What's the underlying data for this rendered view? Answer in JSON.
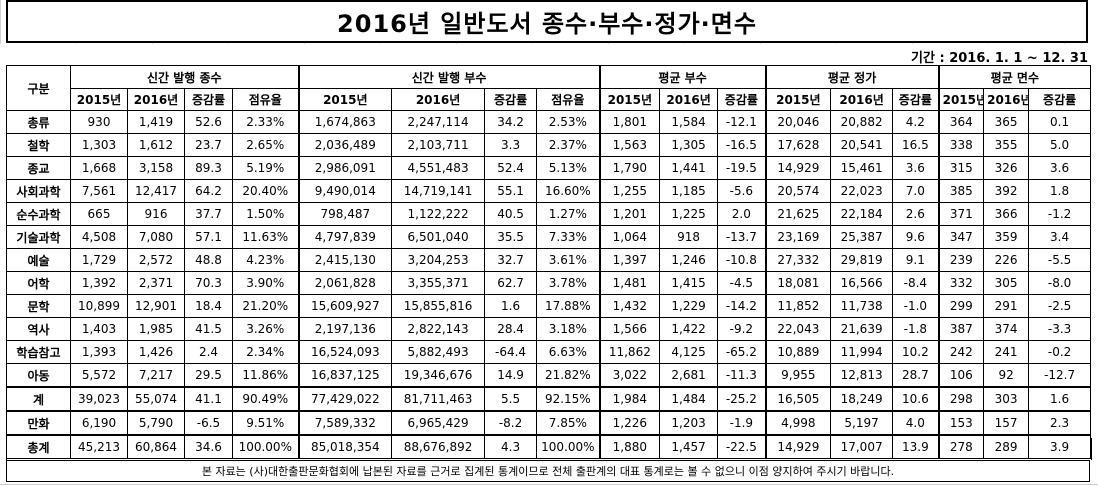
{
  "title": "2016년 일반도서 종수·부수·정가·면수",
  "period": "기간 : 2016. 1. 1 ~ 12. 31",
  "header": {
    "category": "구분",
    "groups": [
      "신간 발행 종수",
      "신간 발행 부수",
      "평균 부수",
      "평균 정가",
      "평균 면수"
    ],
    "sub": {
      "y2015": "2015년",
      "y2016": "2016년",
      "rate": "증감률",
      "share": "점유율"
    }
  },
  "rows": [
    {
      "name": "총류",
      "c": [
        "930",
        "1,419",
        "52.6",
        "2.33%",
        "1,674,863",
        "2,247,114",
        "34.2",
        "2.53%",
        "1,801",
        "1,584",
        "-12.1",
        "20,046",
        "20,882",
        "4.2",
        "364",
        "365",
        "0.1"
      ]
    },
    {
      "name": "철학",
      "c": [
        "1,303",
        "1,612",
        "23.7",
        "2.65%",
        "2,036,489",
        "2,103,711",
        "3.3",
        "2.37%",
        "1,563",
        "1,305",
        "-16.5",
        "17,628",
        "20,541",
        "16.5",
        "338",
        "355",
        "5.0"
      ]
    },
    {
      "name": "종교",
      "c": [
        "1,668",
        "3,158",
        "89.3",
        "5.19%",
        "2,986,091",
        "4,551,483",
        "52.4",
        "5.13%",
        "1,790",
        "1,441",
        "-19.5",
        "14,929",
        "15,461",
        "3.6",
        "315",
        "326",
        "3.6"
      ]
    },
    {
      "name": "사회과학",
      "c": [
        "7,561",
        "12,417",
        "64.2",
        "20.40%",
        "9,490,014",
        "14,719,141",
        "55.1",
        "16.60%",
        "1,255",
        "1,185",
        "-5.6",
        "20,574",
        "22,023",
        "7.0",
        "385",
        "392",
        "1.8"
      ]
    },
    {
      "name": "순수과학",
      "c": [
        "665",
        "916",
        "37.7",
        "1.50%",
        "798,487",
        "1,122,222",
        "40.5",
        "1.27%",
        "1,201",
        "1,225",
        "2.0",
        "21,625",
        "22,184",
        "2.6",
        "371",
        "366",
        "-1.2"
      ]
    },
    {
      "name": "기술과학",
      "c": [
        "4,508",
        "7,080",
        "57.1",
        "11.63%",
        "4,797,839",
        "6,501,040",
        "35.5",
        "7.33%",
        "1,064",
        "918",
        "-13.7",
        "23,169",
        "25,387",
        "9.6",
        "347",
        "359",
        "3.4"
      ]
    },
    {
      "name": "예술",
      "c": [
        "1,729",
        "2,572",
        "48.8",
        "4.23%",
        "2,415,130",
        "3,204,253",
        "32.7",
        "3.61%",
        "1,397",
        "1,246",
        "-10.8",
        "27,332",
        "29,819",
        "9.1",
        "239",
        "226",
        "-5.5"
      ]
    },
    {
      "name": "어학",
      "c": [
        "1,392",
        "2,371",
        "70.3",
        "3.90%",
        "2,061,828",
        "3,355,371",
        "62.7",
        "3.78%",
        "1,481",
        "1,415",
        "-4.5",
        "18,081",
        "16,566",
        "-8.4",
        "332",
        "305",
        "-8.0"
      ]
    },
    {
      "name": "문학",
      "c": [
        "10,899",
        "12,901",
        "18.4",
        "21.20%",
        "15,609,927",
        "15,855,816",
        "1.6",
        "17.88%",
        "1,432",
        "1,229",
        "-14.2",
        "11,852",
        "11,738",
        "-1.0",
        "299",
        "291",
        "-2.5"
      ]
    },
    {
      "name": "역사",
      "c": [
        "1,403",
        "1,985",
        "41.5",
        "3.26%",
        "2,197,136",
        "2,822,143",
        "28.4",
        "3.18%",
        "1,566",
        "1,422",
        "-9.2",
        "22,043",
        "21,639",
        "-1.8",
        "387",
        "374",
        "-3.3"
      ]
    },
    {
      "name": "학습참고",
      "c": [
        "1,393",
        "1,426",
        "2.4",
        "2.34%",
        "16,524,093",
        "5,882,493",
        "-64.4",
        "6.63%",
        "11,862",
        "4,125",
        "-65.2",
        "10,889",
        "11,994",
        "10.2",
        "242",
        "241",
        "-0.2"
      ]
    },
    {
      "name": "아동",
      "c": [
        "5,572",
        "7,217",
        "29.5",
        "11.86%",
        "16,837,125",
        "19,346,676",
        "14.9",
        "21.82%",
        "3,022",
        "2,681",
        "-11.3",
        "9,955",
        "12,813",
        "28.7",
        "106",
        "92",
        "-12.7"
      ]
    },
    {
      "name": "계",
      "c": [
        "39,023",
        "55,074",
        "41.1",
        "90.49%",
        "77,429,022",
        "81,711,463",
        "5.5",
        "92.15%",
        "1,984",
        "1,484",
        "-25.2",
        "16,505",
        "18,249",
        "10.6",
        "298",
        "303",
        "1.6"
      ]
    },
    {
      "name": "만화",
      "c": [
        "6,190",
        "5,790",
        "-6.5",
        "9.51%",
        "7,589,332",
        "6,965,429",
        "-8.2",
        "7.85%",
        "1,226",
        "1,203",
        "-1.9",
        "4,998",
        "5,197",
        "4.0",
        "153",
        "157",
        "2.3"
      ]
    },
    {
      "name": "총계",
      "c": [
        "45,213",
        "60,864",
        "34.6",
        "100.00%",
        "85,018,354",
        "88,676,892",
        "4.3",
        "100.00%",
        "1,880",
        "1,457",
        "-22.5",
        "14,929",
        "17,007",
        "13.9",
        "278",
        "289",
        "3.9"
      ]
    }
  ],
  "note": "본 자료는 (사)대한출판문화협회에 납본된 자료를 근거로 집계된 통계이므로 전체 출판계의 대표 통계로는 볼 수 없으니 이점 양지하여 주시기 바랍니다."
}
